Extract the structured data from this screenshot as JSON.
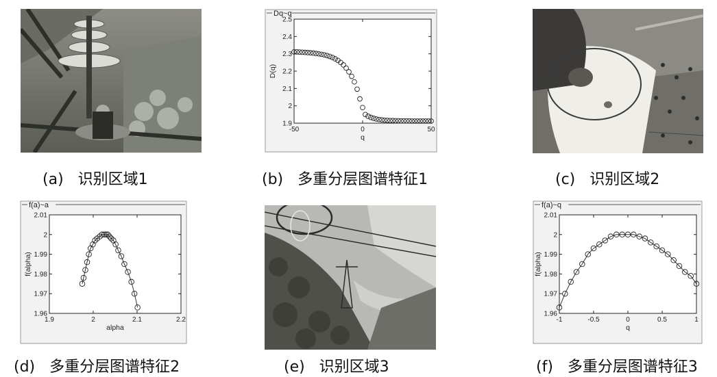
{
  "captions": {
    "a": "(a)   识别区域1",
    "b": "(b)   多重分层图谱特征1",
    "c": "(c)   识别区域2",
    "d": "(d)   多重分层图谱特征2",
    "e": "(e)   识别区域3",
    "f": "(f)   多重分层图谱特征3"
  },
  "chart_data": [
    {
      "type": "scatter",
      "title": "Dq~q",
      "xlabel": "q",
      "ylabel": "D(q)",
      "xlim": [
        -50,
        50
      ],
      "ylim": [
        1.9,
        2.5
      ],
      "x_ticks": [
        "-50",
        "0",
        "50"
      ],
      "y_ticks": [
        "1.9",
        "2",
        "2.1",
        "2.2",
        "2.3",
        "2.4",
        "2.5"
      ],
      "marker": "circle",
      "series": [
        {
          "x": [
            -50,
            -48,
            -46,
            -44,
            -42,
            -40,
            -38,
            -36,
            -34,
            -32,
            -30,
            -28,
            -26,
            -24,
            -22,
            -20,
            -18,
            -16,
            -14,
            -12,
            -10,
            -8,
            -6,
            -4,
            -2,
            0,
            2,
            4,
            6,
            8,
            10,
            12,
            14,
            16,
            18,
            20,
            22,
            24,
            26,
            28,
            30,
            32,
            34,
            36,
            38,
            40,
            42,
            44,
            46,
            48,
            50
          ],
          "values": [
            2.311,
            2.311,
            2.31,
            2.309,
            2.308,
            2.307,
            2.306,
            2.304,
            2.302,
            2.3,
            2.297,
            2.294,
            2.29,
            2.285,
            2.279,
            2.271,
            2.262,
            2.25,
            2.236,
            2.218,
            2.196,
            2.17,
            2.138,
            2.096,
            2.04,
            1.99,
            1.95,
            1.94,
            1.933,
            1.928,
            1.924,
            1.921,
            1.919,
            1.917,
            1.916,
            1.915,
            1.915,
            1.914,
            1.914,
            1.913,
            1.913,
            1.913,
            1.913,
            1.912,
            1.912,
            1.912,
            1.912,
            1.912,
            1.912,
            1.912,
            1.912
          ]
        }
      ]
    },
    {
      "type": "line",
      "title": "f(a)~a",
      "xlabel": "alpha",
      "ylabel": "f(alpha)",
      "xlim": [
        1.9,
        2.2
      ],
      "ylim": [
        1.96,
        2.01
      ],
      "x_ticks": [
        "1.9",
        "2",
        "2.1",
        "2.2"
      ],
      "y_ticks": [
        "1.96",
        "1.97",
        "1.98",
        "1.99",
        "2",
        "2.01"
      ],
      "marker": "circle",
      "series": [
        {
          "x": [
            1.975,
            1.978,
            1.982,
            1.986,
            1.99,
            1.994,
            1.999,
            2.004,
            2.009,
            2.015,
            2.02,
            2.025,
            2.029,
            2.033,
            2.037,
            2.041,
            2.046,
            2.051,
            2.057,
            2.064,
            2.071,
            2.079,
            2.087,
            2.094,
            2.101
          ],
          "values": [
            1.975,
            1.978,
            1.982,
            1.986,
            1.99,
            1.993,
            1.995,
            1.997,
            1.998,
            1.999,
            2.0,
            2.0,
            2.0,
            2.0,
            1.999,
            1.998,
            1.997,
            1.995,
            1.992,
            1.989,
            1.985,
            1.981,
            1.976,
            1.97,
            1.963
          ]
        }
      ]
    },
    {
      "type": "line",
      "title": "f(a)~q",
      "xlabel": "q",
      "ylabel": "f(alpha)",
      "xlim": [
        -1,
        1
      ],
      "ylim": [
        1.96,
        2.01
      ],
      "x_ticks": [
        "-1",
        "-0.5",
        "0",
        "0.5",
        "1"
      ],
      "y_ticks": [
        "1.96",
        "1.97",
        "1.98",
        "1.99",
        "2",
        "2.01"
      ],
      "marker": "circle",
      "series": [
        {
          "x": [
            -1.0,
            -0.917,
            -0.833,
            -0.75,
            -0.667,
            -0.583,
            -0.5,
            -0.417,
            -0.333,
            -0.25,
            -0.167,
            -0.083,
            0.0,
            0.083,
            0.167,
            0.25,
            0.333,
            0.417,
            0.5,
            0.583,
            0.667,
            0.75,
            0.833,
            0.917,
            1.0
          ],
          "values": [
            1.963,
            1.97,
            1.976,
            1.981,
            1.985,
            1.99,
            1.993,
            1.995,
            1.997,
            1.999,
            2.0,
            2.0,
            2.0,
            2.0,
            1.999,
            1.998,
            1.996,
            1.994,
            1.992,
            1.99,
            1.987,
            1.984,
            1.981,
            1.979,
            1.975
          ]
        }
      ]
    }
  ]
}
